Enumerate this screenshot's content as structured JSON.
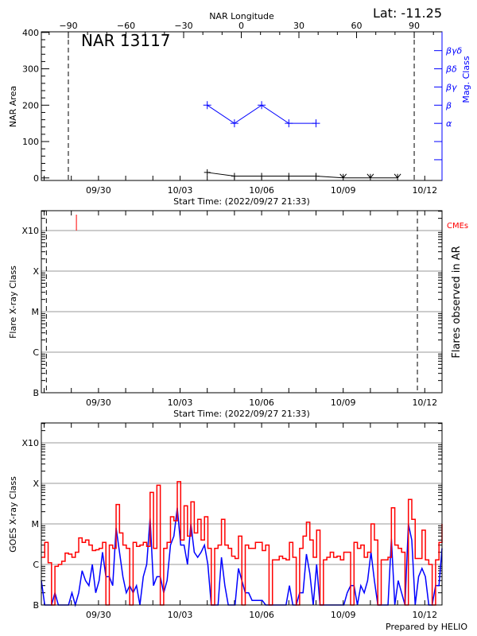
{
  "colors": {
    "nar_area": "#000000",
    "mag_class": "#0000ff",
    "goes_long": "#ff0000",
    "goes_short": "#0000ff",
    "cme": "#ff0000",
    "grid": "#999999"
  },
  "footer": {
    "credit": "Prepared by HELIO"
  },
  "chart_data": [
    {
      "type": "line",
      "title": "NAR 13117",
      "latitude_label": "Lat: -11.25",
      "top_axis": {
        "label": "NAR Longitude",
        "ticks": [
          -90,
          -60,
          -30,
          0,
          30,
          60,
          90
        ],
        "range": [
          -90,
          90
        ],
        "limb_markers": [
          -90,
          90
        ]
      },
      "x_axis": {
        "label_prefix": "Start Time:",
        "start_time": "2022/09/27 21:33",
        "tick_labels": [
          "09/30",
          "10/03",
          "10/06",
          "10/09",
          "10/12"
        ]
      },
      "ylabel": "NAR Area",
      "ylim": [
        0,
        400
      ],
      "y_ticks": [
        0,
        100,
        200,
        300,
        400
      ],
      "right_axis": {
        "label": "Mag. Class",
        "classes": [
          "α",
          "β",
          "βγ",
          "βδ",
          "βγδ"
        ]
      },
      "series": [
        {
          "key": "area",
          "dates": [
            "10/04",
            "10/05",
            "10/06",
            "10/07",
            "10/08",
            "10/09",
            "10/10",
            "10/11"
          ],
          "values": [
            15,
            5,
            5,
            5,
            5,
            0,
            0,
            0
          ]
        },
        {
          "key": "mag_class",
          "dates": [
            "10/04",
            "10/05",
            "10/06",
            "10/07",
            "10/08"
          ],
          "values": [
            "β",
            "α",
            "β",
            "α",
            "α"
          ]
        }
      ],
      "grid": false
    },
    {
      "type": "scatter",
      "ylabel": "Flare X-ray Class",
      "right_label": "Flares observed in AR",
      "y_ticks": [
        "B",
        "C",
        "M",
        "X",
        "X10"
      ],
      "x_axis": {
        "label_prefix": "Start Time:",
        "start_time": "2022/09/27 21:33",
        "tick_labels": [
          "09/30",
          "10/03",
          "10/06",
          "10/09",
          "10/12"
        ]
      },
      "limb_marker_times": [
        "09/28 02:00",
        "10/11 17:30"
      ],
      "flares": [],
      "cmes": {
        "label": "CMEs",
        "times": [
          "09/29 04:30"
        ]
      },
      "grid": true
    },
    {
      "type": "line",
      "ylabel": "GOES X-ray Class",
      "y_ticks": [
        "B",
        "C",
        "M",
        "X",
        "X10"
      ],
      "x_axis": {
        "tick_labels": [
          "09/30",
          "10/03",
          "10/06",
          "10/09",
          "10/12"
        ]
      },
      "y_scale": "log",
      "grid": true,
      "sample_times_utc": [
        "00:33",
        "03:33",
        "06:33",
        "09:33",
        "12:33",
        "15:33",
        "18:33",
        "21:33"
      ],
      "series": [
        {
          "key": "goes_long",
          "days": [
            {
              "date": "09/27",
              "flux": [
                null,
                null,
                null,
                null,
                null,
                null,
                null,
                1.5e-06
              ]
            },
            {
              "date": "09/28",
              "flux": [
                3.5e-06,
                1.1e-06,
                0,
                9e-07,
                1e-06,
                1.2e-06,
                1.9e-06,
                1.8e-06
              ]
            },
            {
              "date": "09/29",
              "flux": [
                1.5e-06,
                2e-06,
                4.5e-06,
                3.5e-06,
                4e-06,
                3e-06,
                2.2e-06,
                2.3e-06
              ]
            },
            {
              "date": "09/30",
              "flux": [
                2.5e-06,
                3.5e-06,
                0,
                3e-06,
                2.5e-06,
                3e-05,
                6e-06,
                3e-06
              ]
            },
            {
              "date": "10/01",
              "flux": [
                2.5e-06,
                0,
                3.5e-06,
                2.8e-06,
                3e-06,
                3.5e-06,
                2.8e-06,
                6e-05
              ]
            },
            {
              "date": "10/02",
              "flux": [
                2.5e-06,
                9e-05,
                0,
                2.5e-06,
                3.5e-06,
                1.5e-05,
                1.2e-05,
                0.00011
              ]
            },
            {
              "date": "10/03",
              "flux": [
                4e-06,
                2.8e-05,
                5e-06,
                3.5e-05,
                6e-06,
                1.3e-05,
                4e-06,
                1.5e-05
              ]
            },
            {
              "date": "10/04",
              "flux": [
                2.5e-06,
                0,
                2.5e-06,
                3e-06,
                1.3e-05,
                3e-06,
                2.5e-06,
                1.6e-06
              ]
            },
            {
              "date": "10/05",
              "flux": [
                1.4e-06,
                5e-06,
                0,
                3e-06,
                2.5e-06,
                2.5e-06,
                3.5e-06,
                3.5e-06
              ]
            },
            {
              "date": "10/06",
              "flux": [
                2.2e-06,
                3e-06,
                0,
                1.3e-06,
                1.3e-06,
                1.6e-06,
                1.4e-06,
                1.3e-06
              ]
            },
            {
              "date": "10/07",
              "flux": [
                3.5e-06,
                1.5e-06,
                0,
                2.5e-06,
                5e-06,
                1.1e-05,
                4e-06,
                1.5e-06
              ]
            },
            {
              "date": "10/08",
              "flux": [
                7e-06,
                0,
                1.3e-06,
                1.5e-06,
                2e-06,
                1.5e-06,
                1.6e-06,
                1.3e-06
              ]
            },
            {
              "date": "10/09",
              "flux": [
                2e-06,
                2e-06,
                0,
                3.5e-06,
                2.5e-06,
                3e-06,
                1.5e-06,
                2e-06
              ]
            },
            {
              "date": "10/10",
              "flux": [
                1e-05,
                4e-06,
                0,
                1.3e-06,
                1.3e-06,
                1.5e-06,
                2.5e-05,
                3e-06
              ]
            },
            {
              "date": "10/11",
              "flux": [
                2.5e-06,
                2e-06,
                0,
                4e-05,
                1.3e-05,
                1.4e-06,
                1.4e-06,
                7e-06
              ]
            },
            {
              "date": "10/12",
              "flux": [
                1.3e-06,
                1e-06,
                0,
                1.3e-06,
                3.5e-06,
                1e-05,
                null,
                null
              ]
            }
          ]
        },
        {
          "key": "goes_short",
          "days": [
            {
              "date": "09/27",
              "flux": [
                null,
                null,
                null,
                null,
                null,
                null,
                null,
                4e-07
              ]
            },
            {
              "date": "09/28",
              "flux": [
                5e-08,
                5e-08,
                5e-08,
                2e-07,
                5e-08,
                5e-08,
                5e-08,
                5e-08
              ]
            },
            {
              "date": "09/29",
              "flux": [
                2e-07,
                5e-08,
                2e-07,
                7e-07,
                4e-07,
                3e-07,
                1e-06,
                2e-07
              ]
            },
            {
              "date": "09/30",
              "flux": [
                4e-07,
                2e-06,
                5e-07,
                5e-07,
                3e-07,
                8e-06,
                2e-06,
                5e-07
              ]
            },
            {
              "date": "10/01",
              "flux": [
                2e-07,
                3e-07,
                2e-07,
                3e-07,
                1e-07,
                5e-07,
                1e-06,
                1.4e-05
              ]
            },
            {
              "date": "10/02",
              "flux": [
                3e-07,
                5e-07,
                5e-07,
                2e-07,
                4e-07,
                3e-06,
                5e-06,
                2.5e-05
              ]
            },
            {
              "date": "10/03",
              "flux": [
                3e-06,
                3e-06,
                1e-06,
                1e-05,
                2e-06,
                1.5e-06,
                2e-06,
                3e-06
              ]
            },
            {
              "date": "10/04",
              "flux": [
                1e-06,
                1e-07,
                1e-07,
                1e-07,
                1.5e-06,
                3e-07,
                1e-07,
                1e-07
              ]
            },
            {
              "date": "10/05",
              "flux": [
                1e-07,
                8e-07,
                4e-07,
                2e-07,
                2e-07,
                1.3e-07,
                1.3e-07,
                1.3e-07
              ]
            },
            {
              "date": "10/06",
              "flux": [
                1.3e-07,
                1e-07,
                5e-08,
                5e-08,
                5e-08,
                5e-08,
                5e-08,
                5e-08
              ]
            },
            {
              "date": "10/07",
              "flux": [
                3e-07,
                1e-07,
                1e-07,
                2e-07,
                2e-07,
                1.8e-06,
                6e-07,
                1e-07
              ]
            },
            {
              "date": "10/08",
              "flux": [
                1e-06,
                5e-08,
                5e-08,
                5e-08,
                5e-08,
                1e-07,
                5e-08,
                1e-07
              ]
            },
            {
              "date": "10/09",
              "flux": [
                1e-07,
                2e-07,
                3e-07,
                3e-07,
                1e-07,
                3e-07,
                2e-07,
                4e-07
              ]
            },
            {
              "date": "10/10",
              "flux": [
                2e-06,
                4e-07,
                5e-08,
                5e-08,
                5e-08,
                5e-08,
                4.3e-06,
                1e-07
              ]
            },
            {
              "date": "10/11",
              "flux": [
                4e-07,
                2e-07,
                5e-08,
                1e-05,
                4e-06,
                5e-08,
                5e-07,
                8e-07
              ]
            },
            {
              "date": "10/12",
              "flux": [
                5e-07,
                5e-08,
                5e-08,
                3e-07,
                3e-07,
                2.5e-06,
                null,
                null
              ]
            }
          ]
        }
      ]
    }
  ]
}
